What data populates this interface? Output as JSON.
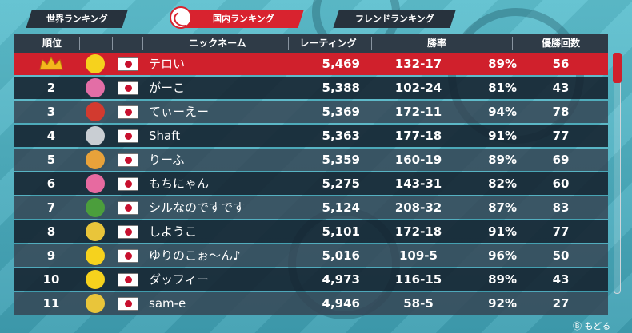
{
  "tabs": {
    "world": "世界ランキング",
    "domestic": "国内ランキング",
    "friend": "フレンドランキング"
  },
  "headers": {
    "rank": "順位",
    "nickname": "ニックネーム",
    "rating": "レーティング",
    "win_rate": "勝率",
    "wins": "優勝回数"
  },
  "rows": [
    {
      "rank": "1",
      "name": "テロい",
      "rating": "5,469",
      "record": "132-17",
      "pct": "89%",
      "wins": "56",
      "avatar_color": "#f6d21d"
    },
    {
      "rank": "2",
      "name": "がーこ",
      "rating": "5,388",
      "record": "102-24",
      "pct": "81%",
      "wins": "43",
      "avatar_color": "#e36ea6"
    },
    {
      "rank": "3",
      "name": "てぃーえー",
      "rating": "5,369",
      "record": "172-11",
      "pct": "94%",
      "wins": "78",
      "avatar_color": "#d23a2f"
    },
    {
      "rank": "4",
      "name": "Shaft",
      "rating": "5,363",
      "record": "177-18",
      "pct": "91%",
      "wins": "77",
      "avatar_color": "#c9ced3"
    },
    {
      "rank": "5",
      "name": "りーふ",
      "rating": "5,359",
      "record": "160-19",
      "pct": "89%",
      "wins": "69",
      "avatar_color": "#e8a23a"
    },
    {
      "rank": "6",
      "name": "もちにゃん",
      "rating": "5,275",
      "record": "143-31",
      "pct": "82%",
      "wins": "60",
      "avatar_color": "#e76aa0"
    },
    {
      "rank": "7",
      "name": "シルなのですです",
      "rating": "5,124",
      "record": "208-32",
      "pct": "87%",
      "wins": "83",
      "avatar_color": "#4b9e3c"
    },
    {
      "rank": "8",
      "name": "しようこ",
      "rating": "5,101",
      "record": "172-18",
      "pct": "91%",
      "wins": "77",
      "avatar_color": "#e9c53a"
    },
    {
      "rank": "9",
      "name": "ゆりのこぉ〜ん♪",
      "rating": "5,016",
      "record": "109-5",
      "pct": "96%",
      "wins": "50",
      "avatar_color": "#f6d21d"
    },
    {
      "rank": "10",
      "name": "ダッフィー",
      "rating": "4,973",
      "record": "116-15",
      "pct": "89%",
      "wins": "43",
      "avatar_color": "#f6d21d"
    },
    {
      "rank": "11",
      "name": "sam-e",
      "rating": "4,946",
      "record": "58-5",
      "pct": "92%",
      "wins": "27",
      "avatar_color": "#e9c53a"
    }
  ],
  "back_label": "もどる",
  "colors": {
    "accent": "#d0202c",
    "header": "#2f3b47"
  }
}
